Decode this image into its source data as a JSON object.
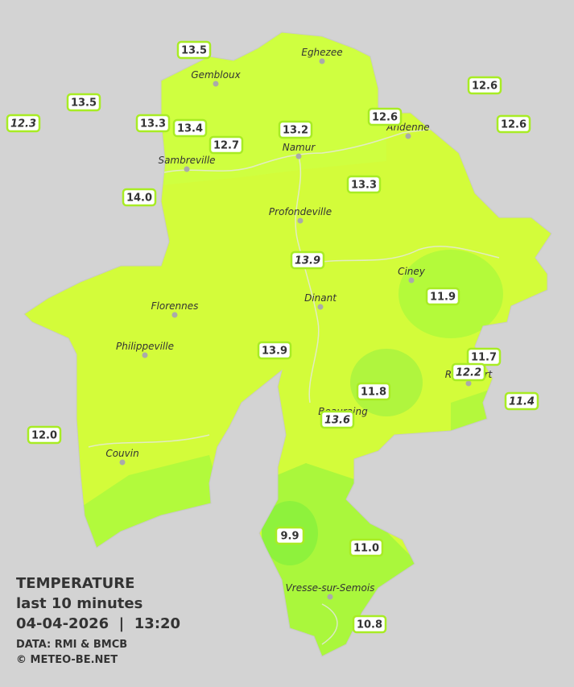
{
  "legend": {
    "title": "TEMPERATURE",
    "subtitle": "last 10 minutes",
    "timestamp": "04-04-2026  |  13:20",
    "source": "DATA: RMI & BMCB",
    "copyright": "© METEO-BE.NET"
  },
  "towns": [
    {
      "name": "Eghezee"
    },
    {
      "name": "Gembloux"
    },
    {
      "name": "Andenne"
    },
    {
      "name": "Namur"
    },
    {
      "name": "Sambreville"
    },
    {
      "name": "Profondeville"
    },
    {
      "name": "Ciney"
    },
    {
      "name": "Dinant"
    },
    {
      "name": "Florennes"
    },
    {
      "name": "Philippeville"
    },
    {
      "name": "Rochefort"
    },
    {
      "name": "Beauraing"
    },
    {
      "name": "Couvin"
    },
    {
      "name": "Vresse-sur-Semois"
    }
  ],
  "stations": [
    {
      "value": "13.5"
    },
    {
      "value": "13.5"
    },
    {
      "value": "12.3"
    },
    {
      "value": "13.3"
    },
    {
      "value": "13.4"
    },
    {
      "value": "12.7"
    },
    {
      "value": "13.2"
    },
    {
      "value": "12.6"
    },
    {
      "value": "12.6"
    },
    {
      "value": "12.6"
    },
    {
      "value": "14.0"
    },
    {
      "value": "13.3"
    },
    {
      "value": "13.9"
    },
    {
      "value": "11.9"
    },
    {
      "value": "13.9"
    },
    {
      "value": "11.7"
    },
    {
      "value": "12.2"
    },
    {
      "value": "11.8"
    },
    {
      "value": "11.4"
    },
    {
      "value": "13.6"
    },
    {
      "value": "12.0"
    },
    {
      "value": "9.9"
    },
    {
      "value": "11.0"
    },
    {
      "value": "10.8"
    }
  ]
}
